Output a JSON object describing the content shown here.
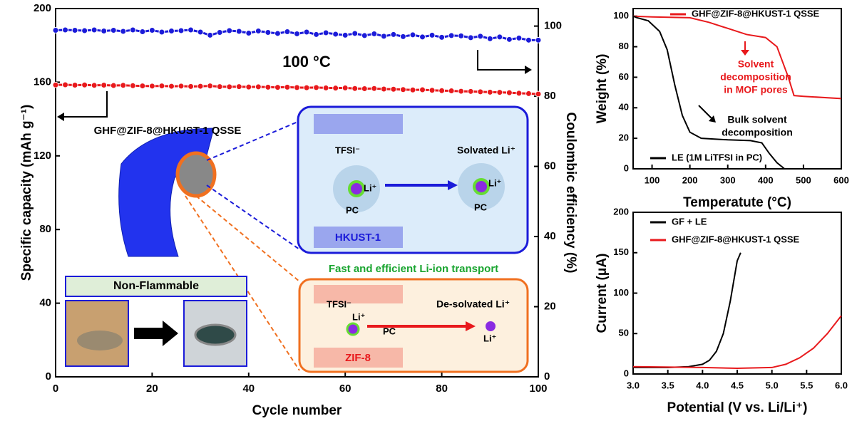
{
  "chart_data": [
    {
      "type": "line",
      "xlabel": "Cycle number",
      "ylabel": "Specific capacity (mAh g⁻¹)",
      "y2label": "Coulombic efficiency (%)",
      "xlim": [
        0,
        100
      ],
      "xticks": [
        0,
        20,
        40,
        60,
        80,
        100
      ],
      "ylim": [
        0,
        200
      ],
      "yticks": [
        0,
        40,
        80,
        120,
        160,
        200
      ],
      "y2lim": [
        0,
        105
      ],
      "y2ticks": [
        0,
        20,
        40,
        60,
        80,
        100
      ],
      "markers": true,
      "annotations": [
        "100 °C",
        "GHF@ZIF-8@HKUST-1 QSSE"
      ],
      "series": [
        {
          "color": "#e8191c",
          "x": [
            0,
            2,
            4,
            6,
            8,
            10,
            12,
            14,
            16,
            18,
            20,
            22,
            24,
            26,
            28,
            30,
            32,
            34,
            36,
            38,
            40,
            42,
            44,
            46,
            48,
            50,
            52,
            54,
            56,
            58,
            60,
            62,
            64,
            66,
            68,
            70,
            72,
            74,
            76,
            78,
            80,
            82,
            84,
            86,
            88,
            90,
            92,
            94,
            96,
            98,
            100
          ],
          "values": [
            158.5,
            158.6,
            158.4,
            158.5,
            158.3,
            158.4,
            158.2,
            158.3,
            158.1,
            158.0,
            157.9,
            158.0,
            157.8,
            157.9,
            157.7,
            157.8,
            158.0,
            157.6,
            157.5,
            157.6,
            157.4,
            157.5,
            157.3,
            157.2,
            157.3,
            157.1,
            157.0,
            157.1,
            156.9,
            156.8,
            156.9,
            156.6,
            156.5,
            156.6,
            156.3,
            156.2,
            156.0,
            155.8,
            155.9,
            155.6,
            155.4,
            155.3,
            155.1,
            155.0,
            154.8,
            154.6,
            154.5,
            154.3,
            154.0,
            153.8,
            153.6
          ]
        },
        {
          "color": "#1b1bd9",
          "axis": "y2",
          "x": [
            0,
            2,
            4,
            6,
            8,
            10,
            12,
            14,
            16,
            18,
            20,
            22,
            24,
            26,
            28,
            30,
            32,
            34,
            36,
            38,
            40,
            42,
            44,
            46,
            48,
            50,
            52,
            54,
            56,
            58,
            60,
            62,
            64,
            66,
            68,
            70,
            72,
            74,
            76,
            78,
            80,
            82,
            84,
            86,
            88,
            90,
            92,
            94,
            96,
            98,
            100
          ],
          "values": [
            98.8,
            98.9,
            98.8,
            98.7,
            98.9,
            98.6,
            98.8,
            98.5,
            98.9,
            98.4,
            98.8,
            98.3,
            98.6,
            98.7,
            98.9,
            98.3,
            97.4,
            98.2,
            98.7,
            98.5,
            98.0,
            98.6,
            98.2,
            97.9,
            98.4,
            97.8,
            98.3,
            97.6,
            98.1,
            97.7,
            97.4,
            97.9,
            97.3,
            97.8,
            97.1,
            97.6,
            97.0,
            97.5,
            96.9,
            97.4,
            96.8,
            97.3,
            97.2,
            96.7,
            97.1,
            96.4,
            96.9,
            96.2,
            96.6,
            96.0,
            96.0
          ]
        }
      ]
    },
    {
      "type": "line",
      "xlabel": "Temperatute (°C)",
      "ylabel": "Weight (%)",
      "xlim": [
        50,
        600
      ],
      "xticks": [
        100,
        200,
        300,
        400,
        500,
        600
      ],
      "ylim": [
        0,
        105
      ],
      "yticks": [
        0,
        20,
        40,
        60,
        80,
        100
      ],
      "annotations": [
        "Solvent",
        "decomposition",
        "in MOF pores",
        "Bulk solvent",
        "decomposition"
      ],
      "series": [
        {
          "name": "GHF@ZIF-8@HKUST-1 QSSE",
          "color": "#e8191c",
          "x": [
            50,
            100,
            200,
            250,
            300,
            350,
            400,
            430,
            460,
            475,
            500,
            600
          ],
          "values": [
            100,
            99.5,
            99,
            96,
            92,
            88,
            86,
            80,
            60,
            48,
            47.5,
            46
          ]
        },
        {
          "name": "LE (1M LiTFSI in PC)",
          "color": "#000000",
          "x": [
            50,
            60,
            90,
            120,
            140,
            160,
            180,
            200,
            230,
            300,
            360,
            390,
            410,
            430,
            450
          ],
          "values": [
            100,
            99,
            97,
            90,
            78,
            55,
            35,
            24,
            20,
            19,
            18.5,
            17,
            10,
            4,
            0
          ]
        }
      ]
    },
    {
      "type": "line",
      "xlabel": "Potential (V vs. Li/Li⁺)",
      "ylabel": "Current (μA)",
      "xlim": [
        3,
        6
      ],
      "xticks": [
        {
          "value": 3,
          "label": "3.0"
        },
        {
          "value": 3.5,
          "label": "3.5"
        },
        {
          "value": 4,
          "label": "4.0"
        },
        {
          "value": 4.5,
          "label": "4.5"
        },
        {
          "value": 5,
          "label": "5.0"
        },
        {
          "value": 5.5,
          "label": "5.5"
        },
        {
          "value": 6,
          "label": "6.0"
        }
      ],
      "ylim": [
        0,
        200
      ],
      "yticks": [
        0,
        50,
        100,
        150,
        200
      ],
      "series": [
        {
          "name": "GF + LE",
          "color": "#000000",
          "x": [
            3.0,
            3.5,
            3.8,
            4.0,
            4.1,
            4.2,
            4.3,
            4.4,
            4.5,
            4.55
          ],
          "values": [
            8,
            8,
            9,
            12,
            17,
            28,
            50,
            90,
            140,
            150
          ]
        },
        {
          "name": "GHF@ZIF-8@HKUST-1 QSSE",
          "color": "#e8191c",
          "x": [
            3.0,
            4.0,
            4.5,
            5.0,
            5.2,
            5.4,
            5.6,
            5.8,
            6.0
          ],
          "values": [
            9,
            8,
            7,
            8,
            12,
            20,
            32,
            50,
            72
          ]
        }
      ]
    }
  ],
  "schematic": {
    "non_flammable": "Non-Flammable",
    "hkust": "HKUST-1",
    "zif": "ZIF-8",
    "transport": "Fast and efficient Li-ion transport",
    "solvated": "Solvated Li⁺",
    "desolvated": "De-solvated Li⁺",
    "tfsi": "TFSI⁻",
    "pc": "PC",
    "li": "Li⁺"
  }
}
